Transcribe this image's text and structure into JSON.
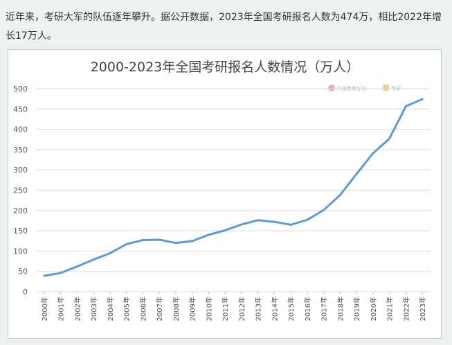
{
  "intro_text": "近年来，考研大军的队伍逐年攀升。据公开数据，2023年全国考研报名人数为474万，相比2022年增长17万人。",
  "colors": {
    "line": "#5b9bd5",
    "grid": "#d9d9d9",
    "page_bg": "#eef1f2"
  },
  "watermarks": [
    {
      "name": "china-education-online-logo",
      "text": "中国教育在线"
    },
    {
      "name": "secondary-logo",
      "text": "考研"
    }
  ],
  "chart_data": {
    "type": "line",
    "title": "2000-2023年全国考研报名人数情况（万人）",
    "xlabel": "",
    "ylabel": "",
    "ylim": [
      0,
      500
    ],
    "yticks": [
      0,
      50,
      100,
      150,
      200,
      250,
      300,
      350,
      400,
      450,
      500
    ],
    "grid": true,
    "categories": [
      "2000年",
      "2001年",
      "2002年",
      "2003年",
      "2004年",
      "2005年",
      "2006年",
      "2007年",
      "2008年",
      "2009年",
      "2010年",
      "2011年",
      "2012年",
      "2013年",
      "2014年",
      "2015年",
      "2016年",
      "2017年",
      "2018年",
      "2019年",
      "2020年",
      "2021年",
      "2022年",
      "2023年"
    ],
    "series": [
      {
        "values": [
          39,
          46,
          62,
          79,
          94.5,
          117,
          127,
          128,
          120,
          124.6,
          140,
          151,
          165.6,
          176,
          172,
          164.9,
          177,
          201,
          238,
          290,
          341,
          377,
          457,
          474
        ]
      }
    ]
  }
}
